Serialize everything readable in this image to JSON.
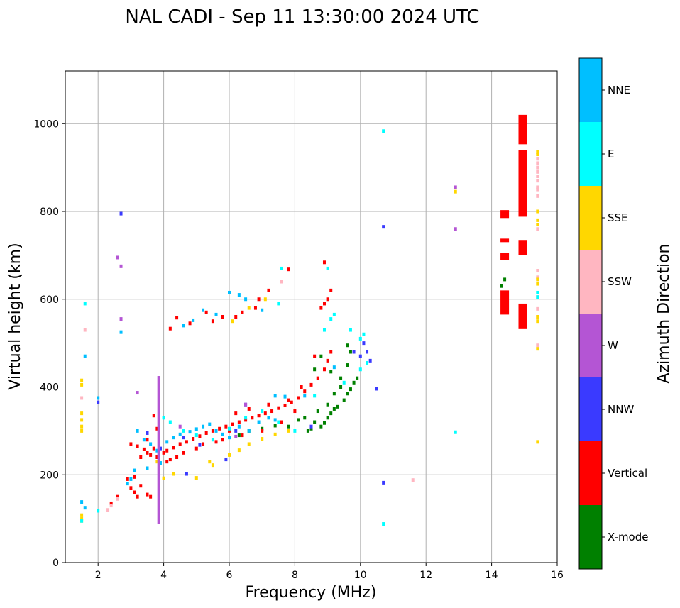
{
  "chart_data": {
    "type": "scatter",
    "title": "NAL CADI - Sep 11 13:30:00 2024 UTC",
    "xlabel": "Frequency (MHz)",
    "ylabel": "Virtual height (km)",
    "xlim": [
      1,
      16
    ],
    "ylim": [
      0,
      1120
    ],
    "grid": true,
    "xticks": [
      2,
      4,
      6,
      8,
      10,
      12,
      14,
      16
    ],
    "yticks": [
      0,
      200,
      400,
      600,
      800,
      1000
    ],
    "colorbar": {
      "label": "Azimuth Direction",
      "categories": [
        {
          "name": "X-mode",
          "color": "#008000"
        },
        {
          "name": "Vertical",
          "color": "#ff0000"
        },
        {
          "name": "NNW",
          "color": "#3a3aff"
        },
        {
          "name": "W",
          "color": "#b455d4"
        },
        {
          "name": "SSW",
          "color": "#ffb6c1"
        },
        {
          "name": "SSE",
          "color": "#ffd700"
        },
        {
          "name": "E",
          "color": "#00ffff"
        },
        {
          "name": "NNE",
          "color": "#00bfff"
        }
      ]
    },
    "series": [
      {
        "name": "X-mode",
        "points": [
          [
            8.4,
            300
          ],
          [
            8.5,
            305
          ],
          [
            8.6,
            320
          ],
          [
            8.8,
            310
          ],
          [
            8.9,
            318
          ],
          [
            9.0,
            330
          ],
          [
            9.1,
            340
          ],
          [
            9.2,
            350
          ],
          [
            9.3,
            355
          ],
          [
            9.5,
            370
          ],
          [
            9.6,
            385
          ],
          [
            9.7,
            395
          ],
          [
            9.8,
            410
          ],
          [
            9.9,
            420
          ],
          [
            8.7,
            345
          ],
          [
            9.4,
            400
          ],
          [
            8.3,
            330
          ],
          [
            9.2,
            385
          ],
          [
            9.6,
            450
          ],
          [
            9.1,
            435
          ],
          [
            8.8,
            470
          ],
          [
            9.7,
            480
          ],
          [
            9.6,
            495
          ],
          [
            7.8,
            310
          ],
          [
            8.1,
            325
          ],
          [
            8.6,
            440
          ],
          [
            6.3,
            290
          ],
          [
            6.6,
            300
          ],
          [
            7.0,
            305
          ],
          [
            7.4,
            312
          ],
          [
            14.3,
            630
          ],
          [
            14.4,
            645
          ],
          [
            9.4,
            420
          ],
          [
            9.0,
            360
          ]
        ]
      },
      {
        "name": "Vertical",
        "points": [
          [
            3.0,
            270
          ],
          [
            3.2,
            265
          ],
          [
            3.4,
            258
          ],
          [
            3.5,
            250
          ],
          [
            3.6,
            245
          ],
          [
            3.8,
            240
          ],
          [
            4.0,
            250
          ],
          [
            4.1,
            255
          ],
          [
            4.3,
            262
          ],
          [
            4.5,
            270
          ],
          [
            4.7,
            275
          ],
          [
            4.9,
            282
          ],
          [
            5.1,
            288
          ],
          [
            5.3,
            295
          ],
          [
            5.5,
            300
          ],
          [
            5.7,
            305
          ],
          [
            5.9,
            310
          ],
          [
            6.1,
            315
          ],
          [
            6.3,
            320
          ],
          [
            6.5,
            325
          ],
          [
            6.7,
            330
          ],
          [
            6.9,
            335
          ],
          [
            7.1,
            340
          ],
          [
            7.3,
            345
          ],
          [
            7.5,
            352
          ],
          [
            7.7,
            358
          ],
          [
            7.9,
            365
          ],
          [
            8.1,
            375
          ],
          [
            8.3,
            390
          ],
          [
            8.5,
            405
          ],
          [
            8.7,
            420
          ],
          [
            8.9,
            440
          ],
          [
            9.0,
            460
          ],
          [
            9.1,
            480
          ],
          [
            3.3,
            240
          ],
          [
            3.7,
            260
          ],
          [
            4.2,
            235
          ],
          [
            4.6,
            250
          ],
          [
            5.2,
            270
          ],
          [
            5.8,
            280
          ],
          [
            6.4,
            290
          ],
          [
            7.0,
            300
          ],
          [
            7.6,
            320
          ],
          [
            8.0,
            345
          ],
          [
            3.0,
            170
          ],
          [
            3.1,
            160
          ],
          [
            3.2,
            150
          ],
          [
            3.3,
            175
          ],
          [
            3.5,
            155
          ],
          [
            2.9,
            190
          ],
          [
            3.1,
            195
          ],
          [
            2.6,
            150
          ],
          [
            2.4,
            135
          ],
          [
            8.8,
            580
          ],
          [
            8.9,
            590
          ],
          [
            9.0,
            600
          ],
          [
            9.1,
            620
          ],
          [
            8.9,
            684
          ],
          [
            7.8,
            668
          ],
          [
            7.2,
            620
          ],
          [
            6.2,
            560
          ],
          [
            6.4,
            570
          ],
          [
            6.8,
            580
          ],
          [
            5.8,
            560
          ],
          [
            5.5,
            550
          ],
          [
            4.8,
            545
          ],
          [
            4.2,
            533
          ],
          [
            5.3,
            570
          ],
          [
            4.4,
            558
          ],
          [
            6.9,
            600
          ],
          [
            3.7,
            335
          ],
          [
            3.6,
            150
          ],
          [
            3.8,
            305
          ],
          [
            5.0,
            260
          ],
          [
            5.6,
            275
          ],
          [
            6.0,
            300
          ],
          [
            6.2,
            340
          ],
          [
            6.6,
            350
          ],
          [
            7.2,
            360
          ],
          [
            7.8,
            370
          ],
          [
            8.2,
            400
          ],
          [
            8.6,
            470
          ],
          [
            3.5,
            280
          ],
          [
            4.1,
            230
          ],
          [
            4.4,
            240
          ]
        ]
      },
      {
        "name": "NNW",
        "points": [
          [
            2.0,
            365
          ],
          [
            2.7,
            795
          ],
          [
            10.7,
            765
          ],
          [
            10.7,
            182
          ],
          [
            10.5,
            396
          ],
          [
            10.1,
            500
          ],
          [
            10.2,
            480
          ],
          [
            10.0,
            470
          ],
          [
            6.5,
            360
          ],
          [
            6.2,
            300
          ],
          [
            5.1,
            268
          ],
          [
            4.6,
            285
          ],
          [
            3.5,
            295
          ],
          [
            3.9,
            260
          ],
          [
            4.7,
            202
          ],
          [
            5.9,
            235
          ],
          [
            9.8,
            480
          ],
          [
            10.3,
            460
          ],
          [
            8.5,
            310
          ]
        ]
      },
      {
        "name": "W",
        "points": [
          [
            2.6,
            695
          ],
          [
            2.7,
            675
          ],
          [
            2.7,
            555
          ],
          [
            3.2,
            387
          ],
          [
            6.5,
            360
          ],
          [
            12.9,
            855
          ],
          [
            12.9,
            760
          ],
          [
            6.2,
            287
          ],
          [
            4.5,
            310
          ]
        ]
      },
      {
        "name": "SSW",
        "points": [
          [
            11.6,
            188
          ],
          [
            2.3,
            120
          ],
          [
            2.4,
            130
          ],
          [
            2.6,
            145
          ],
          [
            15.4,
            665
          ],
          [
            15.4,
            650
          ],
          [
            15.4,
            605
          ],
          [
            15.4,
            578
          ],
          [
            15.4,
            560
          ],
          [
            15.4,
            495
          ],
          [
            15.4,
            760
          ],
          [
            15.4,
            835
          ],
          [
            15.4,
            855
          ],
          [
            15.4,
            870
          ],
          [
            15.4,
            880
          ],
          [
            15.4,
            890
          ],
          [
            15.4,
            900
          ],
          [
            15.4,
            910
          ],
          [
            15.4,
            920
          ],
          [
            15.4,
            850
          ],
          [
            1.5,
            375
          ],
          [
            1.6,
            530
          ],
          [
            7.6,
            640
          ]
        ]
      },
      {
        "name": "SSE",
        "points": [
          [
            1.5,
            415
          ],
          [
            1.5,
            405
          ],
          [
            1.5,
            340
          ],
          [
            1.5,
            325
          ],
          [
            1.5,
            310
          ],
          [
            1.5,
            300
          ],
          [
            1.5,
            108
          ],
          [
            1.5,
            100
          ],
          [
            1.5,
            95
          ],
          [
            12.9,
            845
          ],
          [
            15.4,
            935
          ],
          [
            15.4,
            930
          ],
          [
            15.4,
            800
          ],
          [
            15.4,
            780
          ],
          [
            15.4,
            770
          ],
          [
            15.4,
            645
          ],
          [
            15.4,
            635
          ],
          [
            15.4,
            560
          ],
          [
            15.4,
            550
          ],
          [
            15.4,
            487
          ],
          [
            15.4,
            275
          ],
          [
            3.8,
            230
          ],
          [
            4.3,
            202
          ],
          [
            5.0,
            193
          ],
          [
            5.4,
            230
          ],
          [
            6.0,
            245
          ],
          [
            6.3,
            256
          ],
          [
            6.6,
            270
          ],
          [
            7.0,
            282
          ],
          [
            7.4,
            292
          ],
          [
            7.8,
            300
          ],
          [
            6.1,
            550
          ],
          [
            6.6,
            580
          ],
          [
            7.1,
            600
          ],
          [
            5.5,
            222
          ],
          [
            4.0,
            192
          ]
        ]
      },
      {
        "name": "E",
        "points": [
          [
            1.6,
            590
          ],
          [
            10.7,
            983
          ],
          [
            10.7,
            88
          ],
          [
            12.9,
            297
          ],
          [
            15.4,
            615
          ],
          [
            15.4,
            605
          ],
          [
            10.1,
            520
          ],
          [
            10.0,
            510
          ],
          [
            9.7,
            530
          ],
          [
            10.2,
            455
          ],
          [
            10.0,
            440
          ],
          [
            9.5,
            410
          ],
          [
            9.0,
            670
          ],
          [
            9.1,
            555
          ],
          [
            2.0,
            118
          ],
          [
            1.5,
            95
          ],
          [
            4.0,
            330
          ],
          [
            4.2,
            320
          ],
          [
            4.6,
            300
          ],
          [
            5.0,
            290
          ],
          [
            5.5,
            280
          ],
          [
            6.0,
            305
          ],
          [
            6.5,
            330
          ],
          [
            7.0,
            345
          ],
          [
            7.5,
            320
          ],
          [
            8.0,
            300
          ],
          [
            7.5,
            590
          ],
          [
            7.6,
            670
          ],
          [
            8.6,
            380
          ],
          [
            8.9,
            530
          ],
          [
            9.2,
            565
          ]
        ]
      },
      {
        "name": "NNE",
        "points": [
          [
            1.5,
            138
          ],
          [
            1.6,
            125
          ],
          [
            1.6,
            470
          ],
          [
            2.0,
            375
          ],
          [
            2.7,
            525
          ],
          [
            3.2,
            300
          ],
          [
            3.4,
            280
          ],
          [
            3.6,
            270
          ],
          [
            3.8,
            255
          ],
          [
            4.1,
            275
          ],
          [
            4.3,
            285
          ],
          [
            4.5,
            292
          ],
          [
            4.8,
            298
          ],
          [
            5.0,
            304
          ],
          [
            5.2,
            310
          ],
          [
            5.4,
            315
          ],
          [
            5.6,
            300
          ],
          [
            5.8,
            292
          ],
          [
            6.0,
            285
          ],
          [
            6.3,
            310
          ],
          [
            6.6,
            300
          ],
          [
            6.9,
            320
          ],
          [
            7.2,
            330
          ],
          [
            7.4,
            325
          ],
          [
            3.1,
            210
          ],
          [
            3.0,
            190
          ],
          [
            2.9,
            180
          ],
          [
            3.5,
            215
          ],
          [
            3.9,
            227
          ],
          [
            6.0,
            615
          ],
          [
            6.3,
            610
          ],
          [
            6.5,
            600
          ],
          [
            7.0,
            575
          ],
          [
            5.6,
            565
          ],
          [
            5.2,
            575
          ],
          [
            4.9,
            552
          ],
          [
            4.6,
            540
          ],
          [
            7.4,
            380
          ],
          [
            7.7,
            378
          ],
          [
            8.3,
            380
          ],
          [
            9.2,
            445
          ]
        ]
      }
    ],
    "streaks": [
      {
        "category": "W",
        "x": 3.85,
        "y0": 88,
        "y1": 425
      },
      {
        "category": "Vertical",
        "x": 14.4,
        "y0": 565,
        "y1": 620
      },
      {
        "category": "Vertical",
        "x": 14.4,
        "y0": 690,
        "y1": 705
      },
      {
        "category": "Vertical",
        "x": 14.4,
        "y0": 730,
        "y1": 738
      },
      {
        "category": "Vertical",
        "x": 14.4,
        "y0": 785,
        "y1": 803
      },
      {
        "category": "Vertical",
        "x": 14.95,
        "y0": 532,
        "y1": 590
      },
      {
        "category": "Vertical",
        "x": 14.95,
        "y0": 700,
        "y1": 735
      },
      {
        "category": "Vertical",
        "x": 14.95,
        "y0": 788,
        "y1": 940
      },
      {
        "category": "Vertical",
        "x": 14.95,
        "y0": 953,
        "y1": 1020
      }
    ]
  }
}
